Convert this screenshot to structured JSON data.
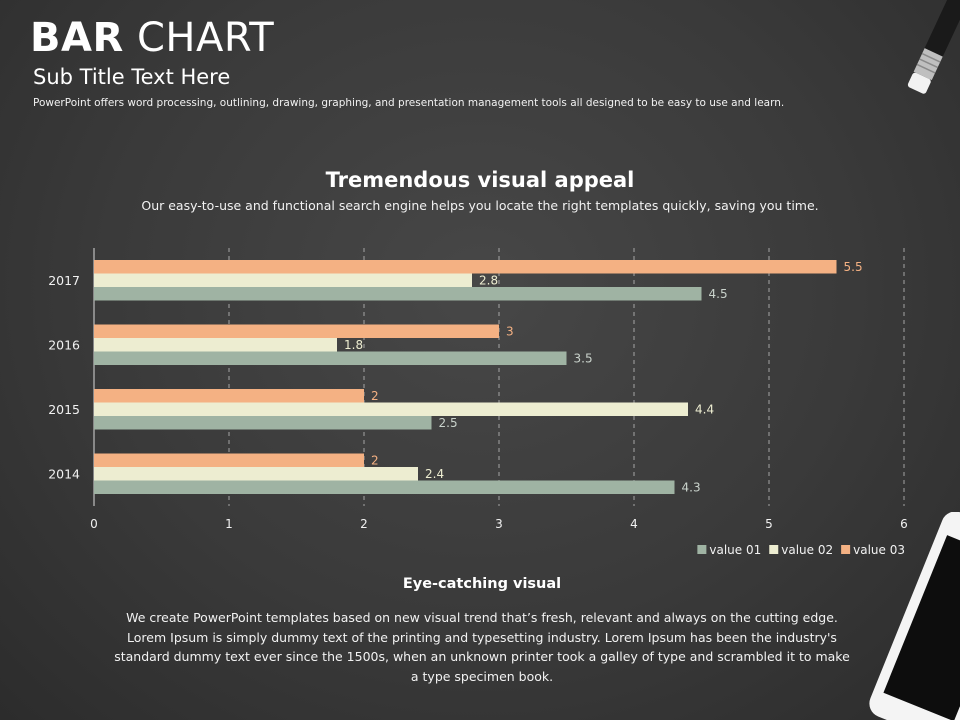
{
  "header": {
    "title_bold": "BAR",
    "title_rest": " CHART",
    "subtitle": "Sub Title Text Here",
    "description": "PowerPoint offers word processing, outlining, drawing, graphing, and presentation management  tools all designed to be easy to use and learn."
  },
  "section": {
    "title": "Tremendous visual appeal",
    "description": "Our easy-to-use and functional search engine helps you locate the right templates quickly, saving you time."
  },
  "footer": {
    "title": "Eye-catching visual",
    "text": "We create PowerPoint templates based on new visual trend that’s fresh, relevant and always on the cutting edge. Lorem Ipsum is simply dummy text of the printing and typesetting industry. Lorem Ipsum has been the industry's standard dummy text ever since the 1500s, when an unknown printer took a galley of type and scrambled it to make a type specimen book."
  },
  "chart_data": {
    "type": "bar",
    "orientation": "horizontal",
    "title": "",
    "xlabel": "",
    "ylabel": "",
    "categories": [
      "2014",
      "2015",
      "2016",
      "2017"
    ],
    "series": [
      {
        "name": "value 03",
        "color": "#f4b183",
        "label_color": "#f4b183",
        "values": [
          2,
          2,
          3,
          5.5
        ]
      },
      {
        "name": "value 02",
        "color": "#ededd1",
        "label_color": "#ededd1",
        "values": [
          2.4,
          4.4,
          1.8,
          2.8
        ]
      },
      {
        "name": "value 01",
        "color": "#9fb3a3",
        "label_color": "#c9d2cb",
        "values": [
          4.3,
          2.5,
          3.5,
          4.5
        ]
      }
    ],
    "xlim": [
      0,
      6
    ],
    "x_ticks": [
      "0",
      "1",
      "2",
      "3",
      "4",
      "5",
      "6"
    ],
    "grid": "vertical dashed",
    "legend": "bottom-right",
    "data_labels": true
  }
}
